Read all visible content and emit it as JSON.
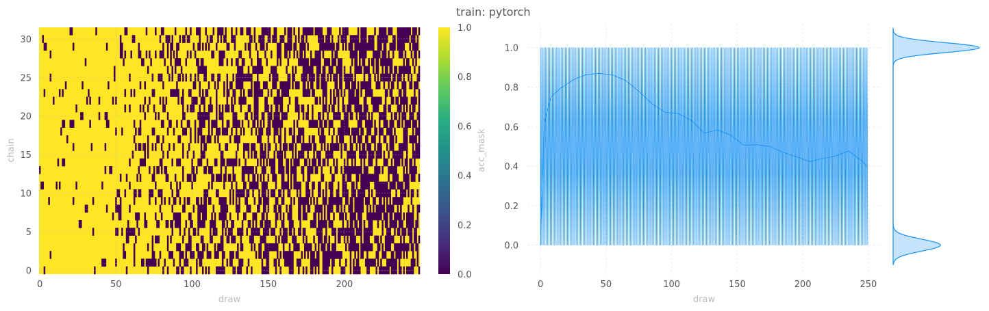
{
  "title": "train: pytorch",
  "chart_data": [
    {
      "type": "heatmap",
      "xlabel": "draw",
      "ylabel": "chain",
      "colorbar_label": "acc_mask",
      "colormap": "viridis",
      "n_draws": 250,
      "n_chains": 32,
      "xticks": [
        0,
        50,
        100,
        150,
        200
      ],
      "yticks": [
        0,
        5,
        10,
        15,
        20,
        25,
        30
      ],
      "colorbar_ticks": [
        "0.0",
        "0.2",
        "0.4",
        "0.6",
        "0.8",
        "1.0"
      ],
      "value_range": [
        0,
        1
      ],
      "color_low": "#440154",
      "color_high": "#fde725",
      "acceptance_profile": {
        "draw": [
          0,
          10,
          25,
          40,
          50,
          60,
          80,
          100,
          125,
          150,
          175,
          200,
          225,
          249
        ],
        "p_accept": [
          0.95,
          0.9,
          0.92,
          0.9,
          0.88,
          0.8,
          0.72,
          0.68,
          0.6,
          0.55,
          0.5,
          0.48,
          0.46,
          0.42
        ]
      }
    },
    {
      "type": "line",
      "xlabel": "draw",
      "ylabel": "",
      "xlim": [
        -10,
        260
      ],
      "ylim": [
        -0.15,
        1.12
      ],
      "xticks": [
        0,
        50,
        100,
        150,
        200,
        250
      ],
      "yticks": [
        "0.0",
        "0.2",
        "0.4",
        "0.6",
        "0.8",
        "1.0"
      ],
      "series_color": "#2196f3",
      "trace_values": "binary 0/1 per draw, alternating densely between 0.0 and 1.0 over draws 0-249",
      "running_mean": {
        "x": [
          0,
          3,
          8,
          15,
          25,
          35,
          45,
          55,
          65,
          75,
          85,
          95,
          105,
          115,
          125,
          135,
          145,
          155,
          165,
          175,
          185,
          195,
          205,
          215,
          225,
          235,
          245,
          249
        ],
        "y": [
          0.0,
          0.62,
          0.75,
          0.8,
          0.83,
          0.86,
          0.87,
          0.86,
          0.83,
          0.78,
          0.72,
          0.68,
          0.66,
          0.63,
          0.57,
          0.58,
          0.55,
          0.51,
          0.5,
          0.5,
          0.46,
          0.44,
          0.43,
          0.44,
          0.46,
          0.47,
          0.43,
          0.4
        ]
      }
    },
    {
      "type": "area",
      "name": "marginal density",
      "orientation": "horizontal",
      "ylim": [
        -0.15,
        1.12
      ],
      "peaks": [
        {
          "y": 0.0,
          "height": 0.55,
          "width": 0.03
        },
        {
          "y": 1.0,
          "height": 1.0,
          "width": 0.025
        }
      ],
      "fill_color": "#c5e3fb",
      "line_color": "#2196f3"
    }
  ]
}
